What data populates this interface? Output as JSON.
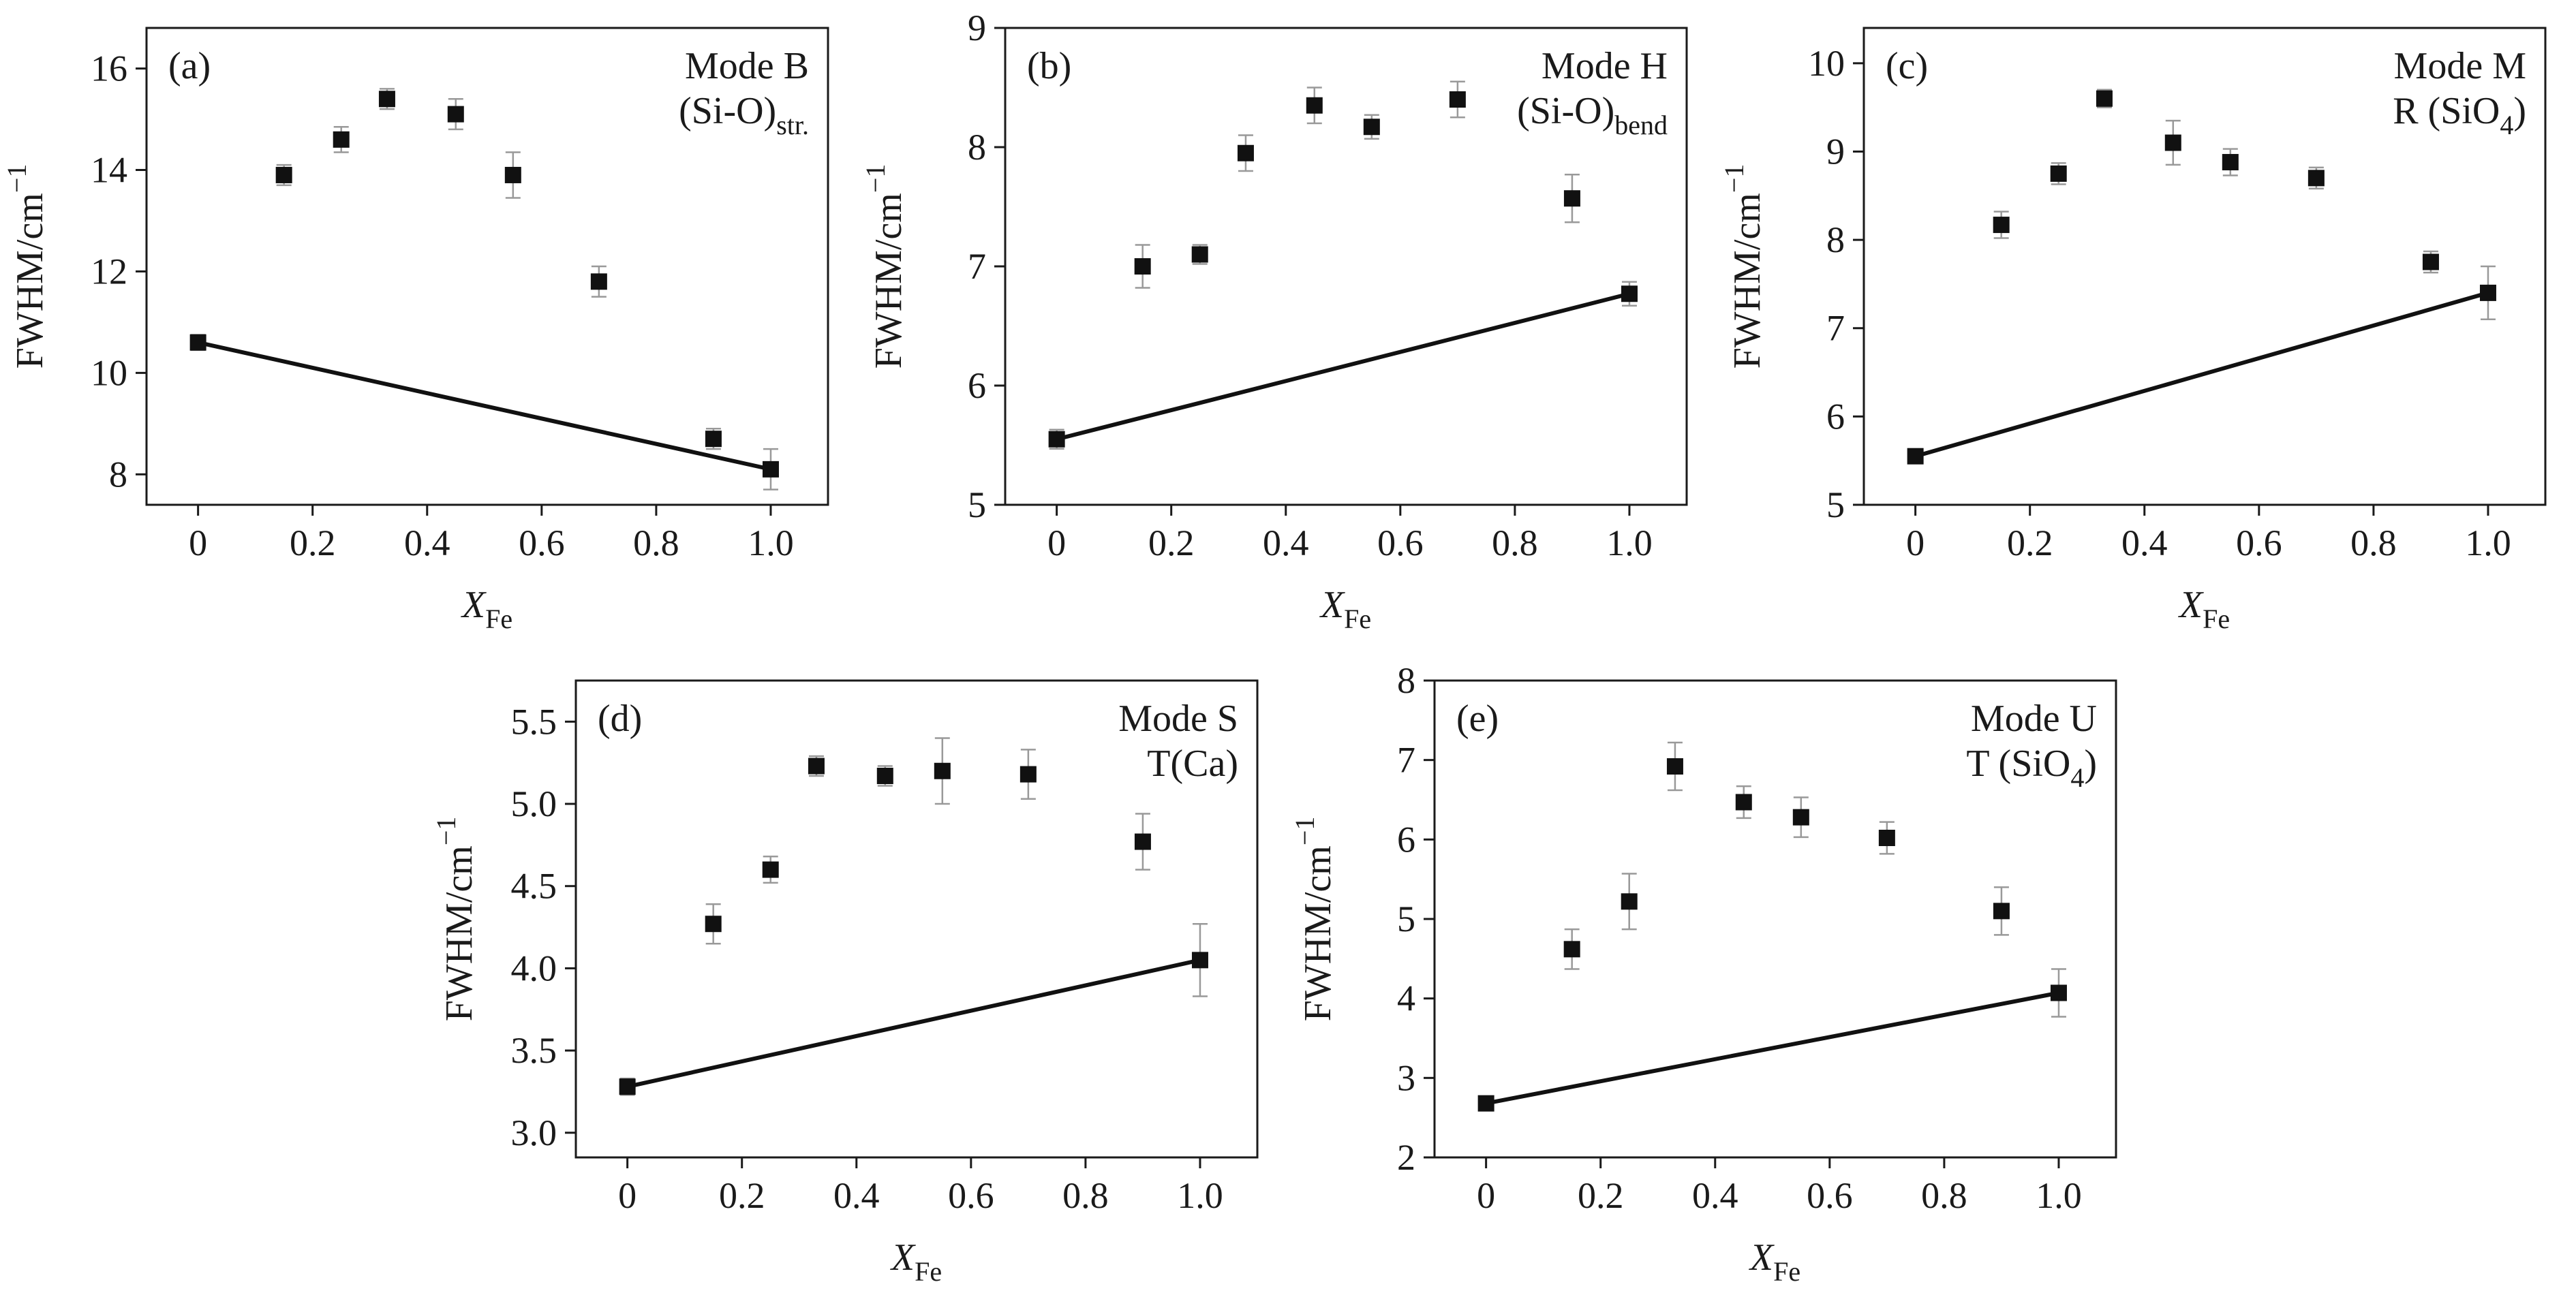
{
  "figure": {
    "background": "#ffffff",
    "marker_color": "#111111",
    "axis_color": "#1a1a1a",
    "errorbar_color": "#999999",
    "line_color": "#111111"
  },
  "chart_data": [
    {
      "type": "scatter",
      "panel_label": "(a)",
      "annotation_lines": [
        [
          {
            "t": "Mode B"
          }
        ],
        [
          {
            "t": "(Si-O)"
          },
          {
            "t": "str.",
            "sub": true
          }
        ]
      ],
      "ylabel_segments": [
        {
          "t": "FWHM/cm"
        },
        {
          "t": "−1",
          "sup": true
        }
      ],
      "xlabel_segments": [
        {
          "t": "X",
          "italic": true
        },
        {
          "t": "Fe",
          "sub": true
        }
      ],
      "xlim": [
        -0.09,
        1.1
      ],
      "ylim": [
        7.4,
        16.8
      ],
      "xticks": [
        0,
        0.2,
        0.4,
        0.6,
        0.8,
        1.0
      ],
      "xtick_labels": [
        "0",
        "0.2",
        "0.4",
        "0.6",
        "0.8",
        "1.0"
      ],
      "yticks": [
        8,
        10,
        12,
        14,
        16
      ],
      "ytick_labels": [
        "8",
        "10",
        "12",
        "14",
        "16"
      ],
      "x": [
        0,
        0.15,
        0.25,
        0.33,
        0.45,
        0.55,
        0.7,
        0.9,
        1.0
      ],
      "y": [
        10.6,
        13.9,
        14.6,
        15.4,
        15.1,
        13.9,
        11.8,
        8.7,
        8.1
      ],
      "yerr": [
        0.15,
        0.2,
        0.25,
        0.2,
        0.3,
        0.45,
        0.3,
        0.2,
        0.4
      ],
      "line": {
        "x": [
          0,
          1.0
        ],
        "y": [
          10.6,
          8.1
        ]
      },
      "axis_color": "#1a1a1a",
      "marker_color": "#111111",
      "errorbar_color": "#999999",
      "line_color": "#111111"
    },
    {
      "type": "scatter",
      "panel_label": "(b)",
      "annotation_lines": [
        [
          {
            "t": "Mode H"
          }
        ],
        [
          {
            "t": "(Si-O)"
          },
          {
            "t": "bend",
            "sub": true
          }
        ]
      ],
      "ylabel_segments": [
        {
          "t": "FWHM/cm"
        },
        {
          "t": "−1",
          "sup": true
        }
      ],
      "xlabel_segments": [
        {
          "t": "X",
          "italic": true
        },
        {
          "t": "Fe",
          "sub": true
        }
      ],
      "xlim": [
        -0.09,
        1.1
      ],
      "ylim": [
        5,
        9
      ],
      "xticks": [
        0,
        0.2,
        0.4,
        0.6,
        0.8,
        1.0
      ],
      "xtick_labels": [
        "0",
        "0.2",
        "0.4",
        "0.6",
        "0.8",
        "1.0"
      ],
      "yticks": [
        5,
        6,
        7,
        8,
        9
      ],
      "ytick_labels": [
        "5",
        "6",
        "7",
        "8",
        "9"
      ],
      "x": [
        0,
        0.15,
        0.25,
        0.33,
        0.45,
        0.55,
        0.7,
        0.9,
        1.0
      ],
      "y": [
        5.55,
        7.0,
        7.1,
        7.95,
        8.35,
        8.17,
        8.4,
        7.57,
        6.77
      ],
      "yerr": [
        0.08,
        0.18,
        0.08,
        0.15,
        0.15,
        0.1,
        0.15,
        0.2,
        0.1
      ],
      "line": {
        "x": [
          0,
          1.0
        ],
        "y": [
          5.55,
          6.77
        ]
      },
      "axis_color": "#1a1a1a",
      "marker_color": "#111111",
      "errorbar_color": "#999999",
      "line_color": "#111111"
    },
    {
      "type": "scatter",
      "panel_label": "(c)",
      "annotation_lines": [
        [
          {
            "t": "Mode M"
          }
        ],
        [
          {
            "t": "R (SiO"
          },
          {
            "t": "4",
            "sub": true
          },
          {
            "t": ")"
          }
        ]
      ],
      "ylabel_segments": [
        {
          "t": "FWHM/cm"
        },
        {
          "t": "−1",
          "sup": true
        }
      ],
      "xlabel_segments": [
        {
          "t": "X",
          "italic": true
        },
        {
          "t": "Fe",
          "sub": true
        }
      ],
      "xlim": [
        -0.09,
        1.1
      ],
      "ylim": [
        5,
        10.4
      ],
      "xticks": [
        0,
        0.2,
        0.4,
        0.6,
        0.8,
        1.0
      ],
      "xtick_labels": [
        "0",
        "0.2",
        "0.4",
        "0.6",
        "0.8",
        "1.0"
      ],
      "yticks": [
        5,
        6,
        7,
        8,
        9,
        10
      ],
      "ytick_labels": [
        "5",
        "6",
        "7",
        "8",
        "9",
        "10"
      ],
      "x": [
        0,
        0.15,
        0.25,
        0.33,
        0.45,
        0.55,
        0.7,
        0.9,
        1.0
      ],
      "y": [
        5.55,
        8.17,
        8.75,
        9.6,
        9.1,
        8.88,
        8.7,
        7.75,
        7.4
      ],
      "yerr": [
        0.06,
        0.15,
        0.12,
        0.1,
        0.25,
        0.15,
        0.12,
        0.12,
        0.3
      ],
      "line": {
        "x": [
          0,
          1.0
        ],
        "y": [
          5.55,
          7.4
        ]
      },
      "axis_color": "#1a1a1a",
      "marker_color": "#111111",
      "errorbar_color": "#999999",
      "line_color": "#111111"
    },
    {
      "type": "scatter",
      "panel_label": "(d)",
      "annotation_lines": [
        [
          {
            "t": "Mode S"
          }
        ],
        [
          {
            "t": "T(Ca)"
          }
        ]
      ],
      "ylabel_segments": [
        {
          "t": "FWHM/cm"
        },
        {
          "t": "−1",
          "sup": true
        }
      ],
      "xlabel_segments": [
        {
          "t": "X",
          "italic": true
        },
        {
          "t": "Fe",
          "sub": true
        }
      ],
      "xlim": [
        -0.09,
        1.1
      ],
      "ylim": [
        2.85,
        5.75
      ],
      "xticks": [
        0,
        0.2,
        0.4,
        0.6,
        0.8,
        1.0
      ],
      "xtick_labels": [
        "0",
        "0.2",
        "0.4",
        "0.6",
        "0.8",
        "1.0"
      ],
      "yticks": [
        3.0,
        3.5,
        4.0,
        4.5,
        5.0,
        5.5
      ],
      "ytick_labels": [
        "3.0",
        "3.5",
        "4.0",
        "4.5",
        "5.0",
        "5.5"
      ],
      "x": [
        0,
        0.15,
        0.25,
        0.33,
        0.45,
        0.55,
        0.7,
        0.9,
        1.0
      ],
      "y": [
        3.28,
        4.27,
        4.6,
        5.23,
        5.17,
        5.2,
        5.18,
        4.77,
        4.05
      ],
      "yerr": [
        0.05,
        0.12,
        0.08,
        0.06,
        0.06,
        0.2,
        0.15,
        0.17,
        0.22
      ],
      "line": {
        "x": [
          0,
          1.0
        ],
        "y": [
          3.28,
          4.05
        ]
      },
      "axis_color": "#1a1a1a",
      "marker_color": "#111111",
      "errorbar_color": "#999999",
      "line_color": "#111111"
    },
    {
      "type": "scatter",
      "panel_label": "(e)",
      "annotation_lines": [
        [
          {
            "t": "Mode U"
          }
        ],
        [
          {
            "t": "T (SiO"
          },
          {
            "t": "4",
            "sub": true
          },
          {
            "t": ")"
          }
        ]
      ],
      "ylabel_segments": [
        {
          "t": "FWHM/cm"
        },
        {
          "t": "−1",
          "sup": true
        }
      ],
      "xlabel_segments": [
        {
          "t": "X",
          "italic": true
        },
        {
          "t": "Fe",
          "sub": true
        }
      ],
      "xlim": [
        -0.09,
        1.1
      ],
      "ylim": [
        2,
        8
      ],
      "xticks": [
        0,
        0.2,
        0.4,
        0.6,
        0.8,
        1.0
      ],
      "xtick_labels": [
        "0",
        "0.2",
        "0.4",
        "0.6",
        "0.8",
        "1.0"
      ],
      "yticks": [
        2,
        3,
        4,
        5,
        6,
        7,
        8
      ],
      "ytick_labels": [
        "2",
        "3",
        "4",
        "5",
        "6",
        "7",
        "8"
      ],
      "x": [
        0,
        0.15,
        0.25,
        0.33,
        0.45,
        0.55,
        0.7,
        0.9,
        1.0
      ],
      "y": [
        2.68,
        4.62,
        5.22,
        6.92,
        6.47,
        6.28,
        6.02,
        5.1,
        4.07
      ],
      "yerr": [
        0.07,
        0.25,
        0.35,
        0.3,
        0.2,
        0.25,
        0.2,
        0.3,
        0.3
      ],
      "line": {
        "x": [
          0,
          1.0
        ],
        "y": [
          2.68,
          4.07
        ]
      },
      "axis_color": "#1a1a1a",
      "marker_color": "#111111",
      "errorbar_color": "#999999",
      "line_color": "#111111"
    }
  ]
}
